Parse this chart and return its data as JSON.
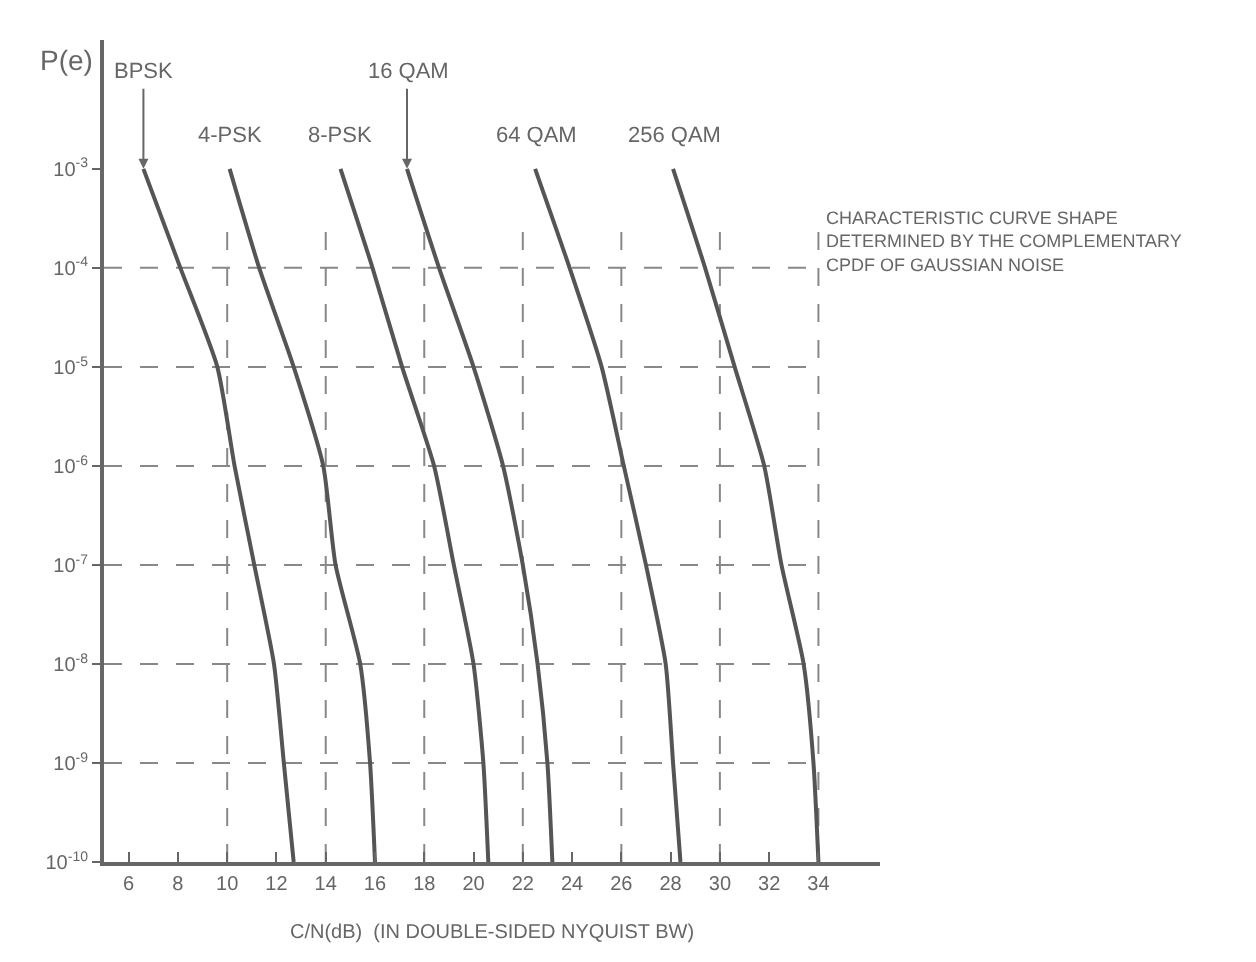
{
  "chart_data": {
    "type": "line",
    "ylabel": "P(e)",
    "xlabel": "C/N(dB)  (IN DOUBLE-SIDED NYQUIST BW)",
    "log": "y",
    "xlim": [
      5,
      36.5
    ],
    "ylim": [
      1e-10,
      0.02
    ],
    "xticks": [
      6,
      8,
      10,
      12,
      14,
      16,
      18,
      20,
      22,
      24,
      26,
      28,
      30,
      32,
      34
    ],
    "yticks": [
      {
        "value": 0.001,
        "label": "10$^{-3}$"
      },
      {
        "value": 0.0001,
        "label": "10$^{-4}$"
      },
      {
        "value": 1e-05,
        "label": "10$^{-5}$"
      },
      {
        "value": 1e-06,
        "label": "10$^{-6}$"
      },
      {
        "value": 1e-07,
        "label": "10$^{-7}$"
      },
      {
        "value": 1e-08,
        "label": "10$^{-8}$"
      },
      {
        "value": 1e-09,
        "label": "10$^{-9}$"
      },
      {
        "value": 1e-10,
        "label": "10$^{-10}$"
      }
    ],
    "grid": false,
    "legend": false,
    "marker": "none",
    "line_style": "solid",
    "series": [
      {
        "name": "BPSK",
        "color": "#555555",
        "x": [
          6.6,
          8.1,
          9.6,
          10.3,
          11.1,
          11.9,
          12.3,
          12.7
        ],
        "values": [
          0.001,
          0.0001,
          1e-05,
          1e-06,
          1e-07,
          1e-08,
          1e-09,
          1e-10
        ]
      },
      {
        "name": "4-PSK",
        "color": "#555555",
        "x": [
          10.1,
          11.3,
          12.7,
          13.9,
          14.4,
          15.4,
          15.8,
          16.0
        ],
        "values": [
          0.001,
          0.0001,
          1e-05,
          1e-06,
          1e-07,
          1e-08,
          1e-09,
          1e-10
        ]
      },
      {
        "name": "8-PSK",
        "color": "#555555",
        "x": [
          14.6,
          15.9,
          17.1,
          18.4,
          19.2,
          20.0,
          20.4,
          20.6
        ],
        "values": [
          0.001,
          0.0001,
          1e-05,
          1e-06,
          1e-07,
          1e-08,
          1e-09,
          1e-10
        ]
      },
      {
        "name": "16 QAM",
        "color": "#555555",
        "x": [
          17.3,
          18.6,
          20.0,
          21.2,
          22.0,
          22.6,
          23.0,
          23.2
        ],
        "values": [
          0.001,
          0.0001,
          1e-05,
          1e-06,
          1e-07,
          1e-08,
          1e-09,
          1e-10
        ]
      },
      {
        "name": "64 QAM",
        "color": "#555555",
        "x": [
          22.5,
          23.9,
          25.2,
          26.1,
          27.0,
          27.8,
          28.1,
          28.4
        ],
        "values": [
          0.001,
          0.0001,
          1e-05,
          1e-06,
          1e-07,
          1e-08,
          1e-09,
          1e-10
        ]
      },
      {
        "name": "256 QAM",
        "color": "#555555",
        "x": [
          28.1,
          29.4,
          30.6,
          31.8,
          32.5,
          33.4,
          33.8,
          34.0
        ],
        "values": [
          0.001,
          0.0001,
          1e-05,
          1e-06,
          1e-07,
          1e-08,
          1e-09,
          1e-10
        ]
      }
    ],
    "ref_lines": [
      {
        "axis": "x",
        "value": 10,
        "line_style": "dashed",
        "color": "#888888"
      },
      {
        "axis": "x",
        "value": 14,
        "line_style": "dashed",
        "color": "#888888"
      },
      {
        "axis": "x",
        "value": 18,
        "line_style": "dashed",
        "color": "#888888"
      },
      {
        "axis": "x",
        "value": 22,
        "line_style": "dashed",
        "color": "#888888"
      },
      {
        "axis": "x",
        "value": 26,
        "line_style": "dashed",
        "color": "#888888"
      },
      {
        "axis": "x",
        "value": 30,
        "line_style": "dashed",
        "color": "#888888"
      },
      {
        "axis": "x",
        "value": 34,
        "line_style": "dashed",
        "color": "#888888"
      },
      {
        "axis": "y",
        "value": 0.0001,
        "line_style": "dashed",
        "color": "#888888"
      },
      {
        "axis": "y",
        "value": 1e-05,
        "line_style": "dashed",
        "color": "#888888"
      },
      {
        "axis": "y",
        "value": 1e-06,
        "line_style": "dashed",
        "color": "#888888"
      },
      {
        "axis": "y",
        "value": 1e-07,
        "line_style": "dashed",
        "color": "#888888"
      },
      {
        "axis": "y",
        "value": 1e-08,
        "line_style": "dashed",
        "color": "#888888"
      },
      {
        "axis": "y",
        "value": 1e-09,
        "line_style": "dashed",
        "color": "#888888"
      }
    ],
    "annotations": [
      "CHARACTERISTIC CURVE SHAPE\nDETERMINED BY THE COMPLEMENTARY\nCPDF OF GAUSSIAN NOISE"
    ]
  }
}
